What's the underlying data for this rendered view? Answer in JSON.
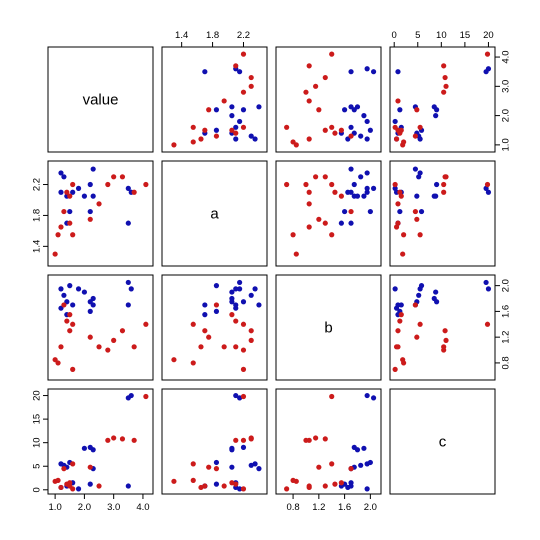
{
  "chart_data": {
    "type": "scatter",
    "variables": [
      "value",
      "a",
      "b",
      "c"
    ],
    "axes": {
      "value": {
        "lim": [
          0.9,
          4.2
        ],
        "ticks": [
          1.0,
          2.0,
          3.0,
          4.0
        ],
        "tick_labels": [
          "1.0",
          "2.0",
          "3.0",
          "4.0"
        ]
      },
      "a": {
        "lim": [
          1.2,
          2.45
        ],
        "ticks": [
          1.4,
          1.8,
          2.2
        ],
        "tick_labels": [
          "1.4",
          "1.8",
          "2.2"
        ]
      },
      "b": {
        "lim": [
          0.6,
          2.1
        ],
        "ticks": [
          0.8,
          1.2,
          1.6,
          2.0
        ],
        "tick_labels": [
          "0.8",
          "1.2",
          "1.6",
          "2.0"
        ]
      },
      "c": {
        "lim": [
          0,
          20.5
        ],
        "ticks": [
          0,
          5,
          10,
          15,
          20
        ],
        "tick_labels": [
          "0",
          "5",
          "10",
          "15",
          "20"
        ]
      }
    },
    "top_axes": [
      "a",
      "c"
    ],
    "bottom_axes": [
      "value",
      "b"
    ],
    "left_axes": [
      "a",
      "c"
    ],
    "right_axes": [
      "value",
      "b"
    ],
    "grid": false,
    "series": [
      {
        "color": "#1010b0",
        "points": [
          {
            "value": 1.2,
            "a": 2.35,
            "b": 1.95,
            "c": 5.5
          },
          {
            "value": 1.3,
            "a": 2.3,
            "b": 1.85,
            "c": 5.2
          },
          {
            "value": 1.4,
            "a": 2.05,
            "b": 1.75,
            "c": 4.8
          },
          {
            "value": 1.5,
            "a": 1.85,
            "b": 2.0,
            "c": 5.8
          },
          {
            "value": 1.6,
            "a": 2.1,
            "b": 1.7,
            "c": 1.5
          },
          {
            "value": 1.4,
            "a": 1.7,
            "b": 1.55,
            "c": 0.8
          },
          {
            "value": 1.2,
            "a": 2.1,
            "b": 1.65,
            "c": 0.5
          },
          {
            "value": 1.8,
            "a": 2.15,
            "b": 1.95,
            "c": 0.2
          },
          {
            "value": 2.0,
            "a": 2.05,
            "b": 1.9,
            "c": 8.8
          },
          {
            "value": 2.2,
            "a": 2.2,
            "b": 1.75,
            "c": 9.0
          },
          {
            "value": 2.3,
            "a": 2.4,
            "b": 1.7,
            "c": 4.5
          },
          {
            "value": 2.2,
            "a": 1.85,
            "b": 1.6,
            "c": 1.2
          },
          {
            "value": 2.3,
            "a": 2.05,
            "b": 1.8,
            "c": 8.5
          },
          {
            "value": 3.5,
            "a": 2.15,
            "b": 2.05,
            "c": 19.5
          },
          {
            "value": 3.6,
            "a": 2.1,
            "b": 1.95,
            "c": 20.0
          },
          {
            "value": 3.5,
            "a": 1.7,
            "b": 1.7,
            "c": 0.8
          }
        ]
      },
      {
        "color": "#cc1b1b",
        "points": [
          {
            "value": 1.0,
            "a": 1.3,
            "b": 0.85,
            "c": 1.8
          },
          {
            "value": 1.1,
            "a": 1.55,
            "b": 0.8,
            "c": 2.0
          },
          {
            "value": 1.2,
            "a": 1.65,
            "b": 1.05,
            "c": 0.5
          },
          {
            "value": 1.4,
            "a": 2.1,
            "b": 1.45,
            "c": 1.2
          },
          {
            "value": 1.5,
            "a": 1.7,
            "b": 1.3,
            "c": 0.8
          },
          {
            "value": 1.6,
            "a": 2.2,
            "b": 0.7,
            "c": 0.2
          },
          {
            "value": 1.6,
            "a": 1.55,
            "b": 1.4,
            "c": 5.5
          },
          {
            "value": 1.5,
            "a": 2.05,
            "b": 1.55,
            "c": 1.5
          },
          {
            "value": 1.3,
            "a": 1.85,
            "b": 1.7,
            "c": 4.5
          },
          {
            "value": 2.2,
            "a": 1.75,
            "b": 1.2,
            "c": 4.8
          },
          {
            "value": 2.5,
            "a": 1.95,
            "b": 1.05,
            "c": 0.8
          },
          {
            "value": 2.8,
            "a": 2.2,
            "b": 1.0,
            "c": 10.5
          },
          {
            "value": 3.0,
            "a": 2.3,
            "b": 1.15,
            "c": 11.0
          },
          {
            "value": 3.3,
            "a": 2.3,
            "b": 1.3,
            "c": 10.8
          },
          {
            "value": 3.7,
            "a": 2.1,
            "b": 1.05,
            "c": 10.5
          },
          {
            "value": 4.1,
            "a": 2.2,
            "b": 1.4,
            "c": 19.8
          }
        ]
      }
    ]
  }
}
